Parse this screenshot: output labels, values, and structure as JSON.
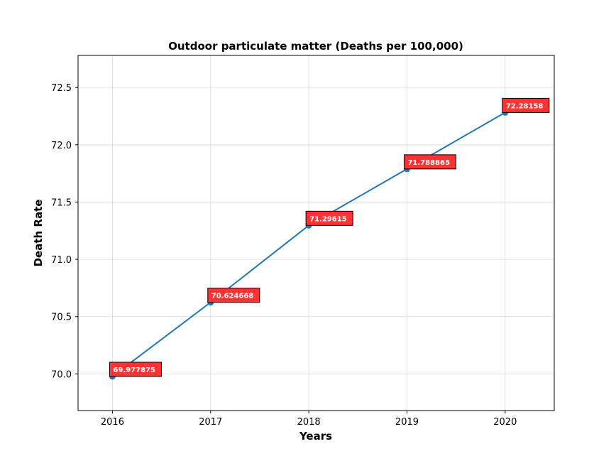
{
  "chart_data": {
    "type": "line",
    "title": "Outdoor particulate matter (Deaths per 100,000)",
    "xlabel": "Years",
    "ylabel": "Death Rate",
    "x": [
      2016,
      2017,
      2018,
      2019,
      2020
    ],
    "x_tick_labels": [
      "2016",
      "2017",
      "2018",
      "2019",
      "2020"
    ],
    "values": [
      69.977875,
      70.624668,
      71.29615,
      71.788865,
      72.28158
    ],
    "data_labels": [
      "69.977875",
      "70.624668",
      "71.29615",
      "71.788865",
      "72.28158"
    ],
    "y_ticks": [
      70.0,
      70.5,
      71.0,
      71.5,
      72.0,
      72.5
    ],
    "y_tick_labels": [
      "70.0",
      "70.5",
      "71.0",
      "71.5",
      "72.0",
      "72.5"
    ],
    "xlim": [
      2015.65,
      2020.5
    ],
    "ylim": [
      69.68,
      72.78
    ],
    "grid": true,
    "colors": {
      "line": "#1f77b4",
      "marker": "#1f77b4",
      "label_box": "#ff3333",
      "label_border": "#000000",
      "label_text": "#ffffff",
      "grid": "#d9d9d9"
    }
  }
}
